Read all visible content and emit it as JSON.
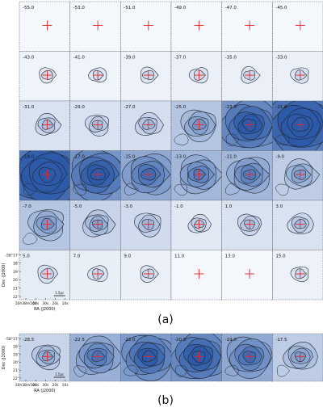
{
  "figure": {
    "panel_a": {
      "caption": "(a)",
      "rows": 6,
      "cols": 6,
      "velocities": [
        "-55.0",
        "-53.0",
        "-51.0",
        "-49.0",
        "-47.0",
        "-45.0",
        "-43.0",
        "-41.0",
        "-39.0",
        "-37.0",
        "-35.0",
        "-33.0",
        "-31.0",
        "-29.0",
        "-27.0",
        "-25.0",
        "-23.0",
        "-21.0",
        "-19.0",
        "-17.0",
        "-15.0",
        "-13.0",
        "-11.0",
        "-9.0",
        "-7.0",
        "-5.0",
        "-3.0",
        "-1.0",
        "1.0",
        "3.0",
        "5.0",
        "7.0",
        "9.0",
        "11.0",
        "13.0",
        "15.0"
      ],
      "intensity": [
        0,
        0,
        0,
        0,
        0,
        0,
        0.03,
        0.03,
        0.04,
        0.05,
        0.05,
        0.05,
        0.15,
        0.15,
        0.18,
        0.35,
        0.7,
        0.85,
        0.9,
        0.7,
        0.55,
        0.45,
        0.45,
        0.3,
        0.35,
        0.25,
        0.2,
        0.1,
        0.15,
        0.15,
        0.08,
        0.06,
        0.05,
        0,
        0,
        0.04
      ]
    },
    "panel_b": {
      "caption": "(b)",
      "velocities": [
        "-28.5",
        "-22.5",
        "-22.0",
        "-20.5",
        "-19.0",
        "-17.5"
      ],
      "intensity": [
        0.25,
        0.5,
        0.65,
        0.7,
        0.55,
        0.3
      ]
    },
    "axes": {
      "ylabel": "Dec (J2000)",
      "xlabel": "RA (J2000)",
      "dec_ticks": [
        "-58°17'",
        "18'",
        "19'",
        "20'",
        "21'",
        "22'"
      ],
      "ra_ticks": [
        "10h38m50s",
        "40s",
        "30s",
        "20s",
        "10s"
      ],
      "scale_bar": "1.5pc"
    },
    "colors": {
      "cmap_low": "#f4f7fc",
      "cmap_high": "#2c5aa8",
      "contour": "#1c2430",
      "marker": "#e8262a",
      "frame": "#555555"
    }
  }
}
